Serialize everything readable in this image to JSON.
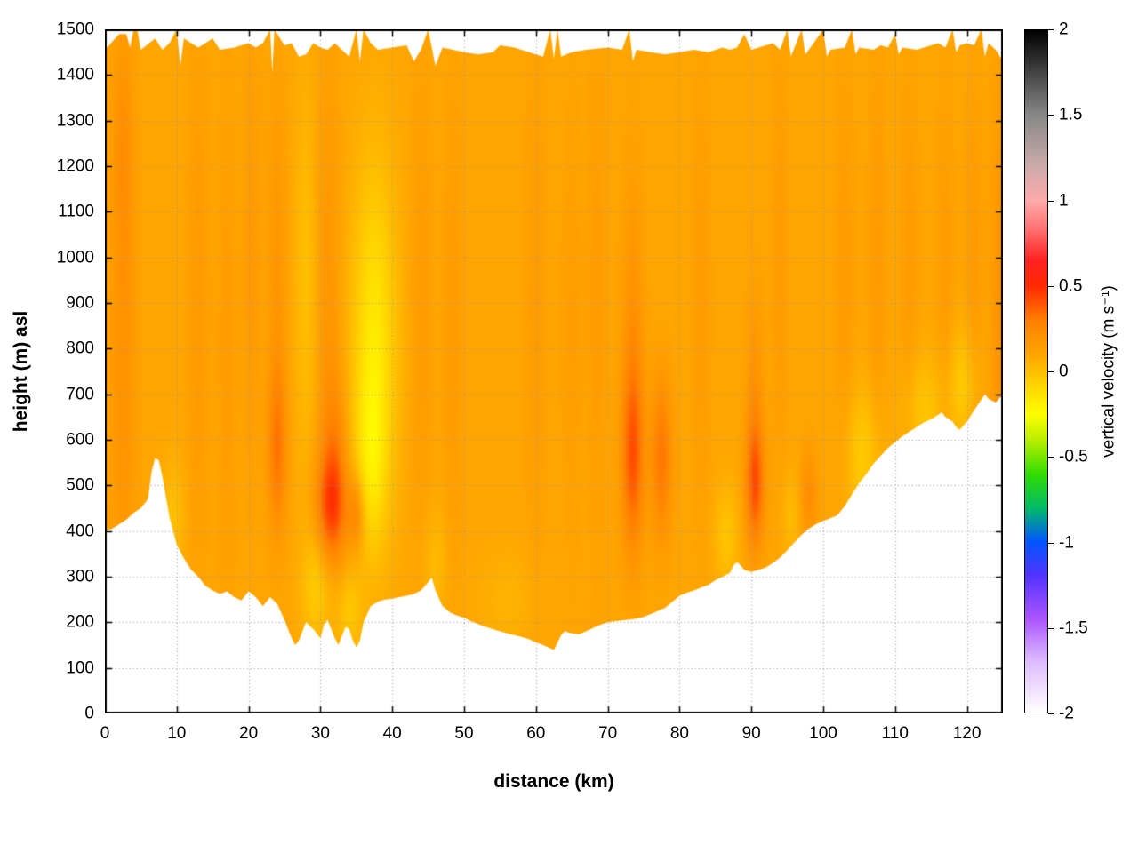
{
  "figure": {
    "background": "#ffffff"
  },
  "chart_data": {
    "type": "heatmap",
    "title": "",
    "xlabel": "distance (km)",
    "ylabel": "height (m) asl",
    "xlim": [
      0,
      125
    ],
    "ylim": [
      0,
      1500
    ],
    "x_ticks": [
      0,
      10,
      20,
      30,
      40,
      50,
      60,
      70,
      80,
      90,
      100,
      110,
      120
    ],
    "y_ticks": [
      0,
      100,
      200,
      300,
      400,
      500,
      600,
      700,
      800,
      900,
      1000,
      1100,
      1200,
      1300,
      1400,
      1500
    ],
    "grid": true,
    "grid_color": "#999999",
    "colorbar": {
      "label": "vertical velocity (m s⁻¹)",
      "range": [
        -2,
        2
      ],
      "ticks": [
        2,
        1.5,
        1,
        0.5,
        0,
        -0.5,
        -1,
        -1.5,
        -2
      ],
      "stops": [
        [
          -2.0,
          "#ffffff"
        ],
        [
          -1.7,
          "#ddbbff"
        ],
        [
          -1.45,
          "#aa55ff"
        ],
        [
          -1.2,
          "#5533ff"
        ],
        [
          -1.0,
          "#0055ff"
        ],
        [
          -0.8,
          "#00bb66"
        ],
        [
          -0.6,
          "#33dd00"
        ],
        [
          -0.4,
          "#bbee00"
        ],
        [
          -0.25,
          "#ffff00"
        ],
        [
          -0.05,
          "#ffcc00"
        ],
        [
          0.1,
          "#ffa500"
        ],
        [
          0.3,
          "#ff7f00"
        ],
        [
          0.5,
          "#ff2a00"
        ],
        [
          0.65,
          "#ff2222"
        ],
        [
          0.85,
          "#ff7777"
        ],
        [
          1.0,
          "#ffaaaa"
        ],
        [
          1.2,
          "#ccaaaa"
        ],
        [
          1.5,
          "#888888"
        ],
        [
          1.75,
          "#444444"
        ],
        [
          2.0,
          "#000000"
        ]
      ]
    },
    "field": {
      "units": "m s⁻¹",
      "base_value": 0.1,
      "anomalies": [
        {
          "x": 2.5,
          "y": 800,
          "sx": 1.3,
          "sy": 420,
          "amp": 0.1
        },
        {
          "x": 2.5,
          "y": 1250,
          "sx": 1.0,
          "sy": 160,
          "amp": 0.07
        },
        {
          "x": 13,
          "y": 900,
          "sx": 1.0,
          "sy": 400,
          "amp": 0.06
        },
        {
          "x": 17,
          "y": 800,
          "sx": 0.9,
          "sy": 400,
          "amp": 0.05
        },
        {
          "x": 20.5,
          "y": 1000,
          "sx": 0.9,
          "sy": 350,
          "amp": 0.06
        },
        {
          "x": 24,
          "y": 580,
          "sx": 0.9,
          "sy": 120,
          "amp": 0.2
        },
        {
          "x": 24,
          "y": 950,
          "sx": 0.9,
          "sy": 300,
          "amp": 0.08
        },
        {
          "x": 31.5,
          "y": 450,
          "sx": 1.5,
          "sy": 85,
          "amp": 0.3
        },
        {
          "x": 32,
          "y": 580,
          "sx": 1.2,
          "sy": 130,
          "amp": 0.14
        },
        {
          "x": 31,
          "y": 950,
          "sx": 1.2,
          "sy": 330,
          "amp": 0.08
        },
        {
          "x": 35,
          "y": 440,
          "sx": 0.8,
          "sy": 60,
          "amp": 0.2
        },
        {
          "x": 44,
          "y": 900,
          "sx": 1.0,
          "sy": 400,
          "amp": 0.05
        },
        {
          "x": 48.5,
          "y": 850,
          "sx": 0.9,
          "sy": 400,
          "amp": 0.05
        },
        {
          "x": 60,
          "y": 900,
          "sx": 1.0,
          "sy": 400,
          "amp": 0.05
        },
        {
          "x": 65,
          "y": 850,
          "sx": 0.9,
          "sy": 350,
          "amp": 0.04
        },
        {
          "x": 68.5,
          "y": 900,
          "sx": 0.9,
          "sy": 400,
          "amp": 0.05
        },
        {
          "x": 73.5,
          "y": 560,
          "sx": 1.1,
          "sy": 140,
          "amp": 0.26
        },
        {
          "x": 73.5,
          "y": 820,
          "sx": 1.0,
          "sy": 260,
          "amp": 0.1
        },
        {
          "x": 77.5,
          "y": 560,
          "sx": 1.0,
          "sy": 120,
          "amp": 0.22
        },
        {
          "x": 83,
          "y": 900,
          "sx": 0.9,
          "sy": 350,
          "amp": 0.05
        },
        {
          "x": 90.5,
          "y": 500,
          "sx": 0.9,
          "sy": 95,
          "amp": 0.28
        },
        {
          "x": 90.5,
          "y": 680,
          "sx": 0.8,
          "sy": 160,
          "amp": 0.1
        },
        {
          "x": 94,
          "y": 1000,
          "sx": 0.8,
          "sy": 350,
          "amp": 0.05
        },
        {
          "x": 98,
          "y": 480,
          "sx": 0.8,
          "sy": 70,
          "amp": 0.13
        },
        {
          "x": 103,
          "y": 950,
          "sx": 0.9,
          "sy": 350,
          "amp": 0.05
        },
        {
          "x": 107.5,
          "y": 1000,
          "sx": 0.8,
          "sy": 300,
          "amp": 0.06
        },
        {
          "x": 112,
          "y": 1000,
          "sx": 0.8,
          "sy": 300,
          "amp": 0.05
        },
        {
          "x": 117,
          "y": 950,
          "sx": 0.8,
          "sy": 300,
          "amp": 0.05
        },
        {
          "x": 121,
          "y": 950,
          "sx": 0.8,
          "sy": 300,
          "amp": 0.06
        },
        {
          "x": 124.5,
          "y": 850,
          "sx": 0.9,
          "sy": 400,
          "amp": 0.09
        },
        {
          "x": 37.5,
          "y": 800,
          "sx": 2.2,
          "sy": 280,
          "amp": -0.26
        },
        {
          "x": 37,
          "y": 550,
          "sx": 1.5,
          "sy": 130,
          "amp": -0.14
        },
        {
          "x": 28,
          "y": 950,
          "sx": 1.2,
          "sy": 300,
          "amp": -0.1
        },
        {
          "x": 29.5,
          "y": 280,
          "sx": 1.5,
          "sy": 90,
          "amp": -0.15
        },
        {
          "x": 34,
          "y": 220,
          "sx": 1.2,
          "sy": 70,
          "amp": -0.12
        },
        {
          "x": 9.5,
          "y": 430,
          "sx": 1.2,
          "sy": 90,
          "amp": -0.1
        },
        {
          "x": 46,
          "y": 330,
          "sx": 1.2,
          "sy": 90,
          "amp": -0.08
        },
        {
          "x": 56,
          "y": 250,
          "sx": 3.0,
          "sy": 80,
          "amp": -0.05
        },
        {
          "x": 86.5,
          "y": 390,
          "sx": 1.2,
          "sy": 80,
          "amp": -0.12
        },
        {
          "x": 95.5,
          "y": 430,
          "sx": 1.0,
          "sy": 70,
          "amp": -0.08
        },
        {
          "x": 105.5,
          "y": 560,
          "sx": 1.8,
          "sy": 110,
          "amp": -0.14
        },
        {
          "x": 114,
          "y": 660,
          "sx": 2.0,
          "sy": 90,
          "amp": -0.12
        },
        {
          "x": 119.5,
          "y": 720,
          "sx": 1.5,
          "sy": 90,
          "amp": -0.14
        }
      ]
    },
    "bottom_boundary_terrain": [
      [
        0,
        400
      ],
      [
        1,
        405
      ],
      [
        2,
        415
      ],
      [
        3,
        425
      ],
      [
        4,
        440
      ],
      [
        5,
        450
      ],
      [
        6,
        470
      ],
      [
        6.5,
        530
      ],
      [
        7,
        560
      ],
      [
        7.5,
        555
      ],
      [
        8,
        520
      ],
      [
        9,
        430
      ],
      [
        10,
        370
      ],
      [
        11,
        340
      ],
      [
        12,
        315
      ],
      [
        13,
        300
      ],
      [
        14,
        280
      ],
      [
        15,
        270
      ],
      [
        16,
        262
      ],
      [
        17,
        268
      ],
      [
        18,
        255
      ],
      [
        19,
        248
      ],
      [
        20,
        268
      ],
      [
        21,
        255
      ],
      [
        22,
        235
      ],
      [
        23,
        255
      ],
      [
        24,
        240
      ],
      [
        25,
        205
      ],
      [
        26,
        165
      ],
      [
        26.5,
        150
      ],
      [
        27,
        160
      ],
      [
        28,
        200
      ],
      [
        29,
        185
      ],
      [
        30,
        165
      ],
      [
        30.5,
        195
      ],
      [
        31,
        205
      ],
      [
        32,
        165
      ],
      [
        32.5,
        150
      ],
      [
        33,
        170
      ],
      [
        33.5,
        190
      ],
      [
        34,
        185
      ],
      [
        34.5,
        160
      ],
      [
        35,
        145
      ],
      [
        35.5,
        160
      ],
      [
        36,
        200
      ],
      [
        37,
        235
      ],
      [
        38,
        245
      ],
      [
        39,
        250
      ],
      [
        40,
        252
      ],
      [
        41,
        255
      ],
      [
        42,
        258
      ],
      [
        43,
        262
      ],
      [
        44,
        270
      ],
      [
        45,
        288
      ],
      [
        45.5,
        298
      ],
      [
        46,
        270
      ],
      [
        47,
        235
      ],
      [
        48,
        222
      ],
      [
        49,
        215
      ],
      [
        50,
        210
      ],
      [
        51,
        202
      ],
      [
        52,
        196
      ],
      [
        53,
        190
      ],
      [
        54,
        185
      ],
      [
        55,
        180
      ],
      [
        56,
        176
      ],
      [
        57,
        172
      ],
      [
        58,
        168
      ],
      [
        59,
        163
      ],
      [
        60,
        156
      ],
      [
        61,
        150
      ],
      [
        62,
        143
      ],
      [
        62.5,
        140
      ],
      [
        63,
        155
      ],
      [
        63.5,
        172
      ],
      [
        64,
        180
      ],
      [
        65,
        176
      ],
      [
        66,
        174
      ],
      [
        67,
        180
      ],
      [
        68,
        188
      ],
      [
        69,
        195
      ],
      [
        70,
        200
      ],
      [
        71,
        202
      ],
      [
        72,
        204
      ],
      [
        73,
        206
      ],
      [
        74,
        208
      ],
      [
        75,
        212
      ],
      [
        76,
        218
      ],
      [
        77,
        225
      ],
      [
        78,
        232
      ],
      [
        79,
        245
      ],
      [
        80,
        258
      ],
      [
        81,
        265
      ],
      [
        82,
        270
      ],
      [
        83,
        276
      ],
      [
        84,
        282
      ],
      [
        85,
        292
      ],
      [
        86,
        300
      ],
      [
        87,
        308
      ],
      [
        87.5,
        325
      ],
      [
        88,
        332
      ],
      [
        88.5,
        325
      ],
      [
        89,
        315
      ],
      [
        90,
        310
      ],
      [
        91,
        315
      ],
      [
        92,
        320
      ],
      [
        93,
        330
      ],
      [
        94,
        342
      ],
      [
        95,
        358
      ],
      [
        96,
        375
      ],
      [
        97,
        392
      ],
      [
        98,
        405
      ],
      [
        99,
        415
      ],
      [
        100,
        422
      ],
      [
        101,
        428
      ],
      [
        102,
        435
      ],
      [
        103,
        455
      ],
      [
        104,
        480
      ],
      [
        105,
        505
      ],
      [
        106,
        525
      ],
      [
        107,
        548
      ],
      [
        108,
        565
      ],
      [
        109,
        582
      ],
      [
        110,
        595
      ],
      [
        111,
        608
      ],
      [
        112,
        618
      ],
      [
        113,
        628
      ],
      [
        114,
        638
      ],
      [
        115,
        645
      ],
      [
        116,
        655
      ],
      [
        116.5,
        660
      ],
      [
        117,
        650
      ],
      [
        118,
        640
      ],
      [
        118.5,
        628
      ],
      [
        119,
        622
      ],
      [
        120,
        640
      ],
      [
        121,
        665
      ],
      [
        122,
        688
      ],
      [
        122.5,
        700
      ],
      [
        123,
        690
      ],
      [
        124,
        682
      ],
      [
        125,
        700
      ]
    ],
    "top_boundary": [
      [
        0,
        1455
      ],
      [
        2,
        1490
      ],
      [
        3,
        1490
      ],
      [
        3.5,
        1460
      ],
      [
        4,
        1500
      ],
      [
        4.5,
        1500
      ],
      [
        5,
        1455
      ],
      [
        7,
        1480
      ],
      [
        8,
        1455
      ],
      [
        9,
        1470
      ],
      [
        10,
        1500
      ],
      [
        10.5,
        1420
      ],
      [
        11,
        1480
      ],
      [
        13,
        1460
      ],
      [
        14,
        1470
      ],
      [
        15,
        1480
      ],
      [
        16,
        1455
      ],
      [
        18,
        1460
      ],
      [
        20,
        1470
      ],
      [
        21,
        1460
      ],
      [
        22,
        1470
      ],
      [
        23,
        1500
      ],
      [
        23.3,
        1405
      ],
      [
        23.6,
        1500
      ],
      [
        25,
        1465
      ],
      [
        26,
        1470
      ],
      [
        27,
        1440
      ],
      [
        28,
        1445
      ],
      [
        29,
        1470
      ],
      [
        30,
        1460
      ],
      [
        31,
        1455
      ],
      [
        32,
        1470
      ],
      [
        34,
        1440
      ],
      [
        35,
        1500
      ],
      [
        35.5,
        1430
      ],
      [
        36,
        1500
      ],
      [
        37,
        1470
      ],
      [
        38,
        1455
      ],
      [
        40,
        1460
      ],
      [
        42,
        1465
      ],
      [
        43,
        1430
      ],
      [
        44,
        1455
      ],
      [
        45,
        1500
      ],
      [
        46,
        1420
      ],
      [
        47,
        1460
      ],
      [
        50,
        1450
      ],
      [
        52,
        1445
      ],
      [
        54,
        1450
      ],
      [
        55,
        1465
      ],
      [
        57,
        1460
      ],
      [
        60,
        1445
      ],
      [
        61,
        1440
      ],
      [
        62,
        1500
      ],
      [
        62.5,
        1435
      ],
      [
        63,
        1500
      ],
      [
        63.5,
        1440
      ],
      [
        65,
        1450
      ],
      [
        67,
        1455
      ],
      [
        70,
        1460
      ],
      [
        72,
        1455
      ],
      [
        73,
        1500
      ],
      [
        73.5,
        1430
      ],
      [
        74,
        1455
      ],
      [
        76,
        1450
      ],
      [
        78,
        1445
      ],
      [
        80,
        1450
      ],
      [
        82,
        1455
      ],
      [
        84,
        1450
      ],
      [
        86,
        1460
      ],
      [
        87,
        1455
      ],
      [
        88,
        1460
      ],
      [
        89,
        1490
      ],
      [
        90,
        1455
      ],
      [
        91,
        1460
      ],
      [
        93,
        1470
      ],
      [
        94,
        1455
      ],
      [
        95,
        1500
      ],
      [
        95.5,
        1440
      ],
      [
        96,
        1460
      ],
      [
        97,
        1500
      ],
      [
        97.5,
        1445
      ],
      [
        98,
        1455
      ],
      [
        100,
        1500
      ],
      [
        100.5,
        1440
      ],
      [
        101,
        1455
      ],
      [
        103,
        1460
      ],
      [
        104,
        1500
      ],
      [
        104.5,
        1445
      ],
      [
        105,
        1460
      ],
      [
        107,
        1455
      ],
      [
        108,
        1465
      ],
      [
        109,
        1460
      ],
      [
        110,
        1490
      ],
      [
        110.5,
        1445
      ],
      [
        111,
        1460
      ],
      [
        113,
        1455
      ],
      [
        115,
        1465
      ],
      [
        116,
        1470
      ],
      [
        117,
        1460
      ],
      [
        118,
        1500
      ],
      [
        118.5,
        1450
      ],
      [
        119,
        1465
      ],
      [
        120,
        1470
      ],
      [
        121,
        1465
      ],
      [
        122,
        1500
      ],
      [
        122.5,
        1440
      ],
      [
        123,
        1470
      ],
      [
        124,
        1455
      ],
      [
        125,
        1430
      ]
    ]
  }
}
